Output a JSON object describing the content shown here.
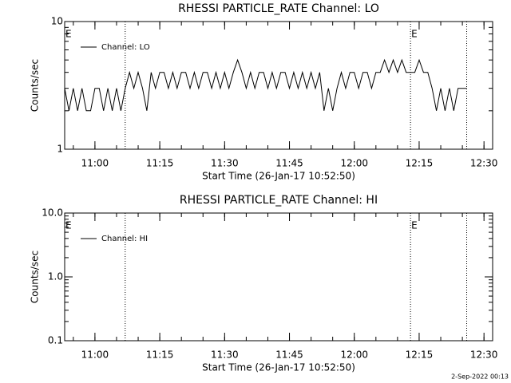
{
  "chart_data": [
    {
      "type": "line",
      "title": "RHESSI PARTICLE_RATE Channel: LO",
      "ylabel": "Counts/sec",
      "xlabel": "Start Time (26-Jan-17 10:52:50)",
      "log_y": true,
      "ylim": [
        1,
        10
      ],
      "yticks": [
        1,
        10
      ],
      "xlim": [
        "10:53",
        "12:32"
      ],
      "xticks": [
        "11:00",
        "11:15",
        "11:30",
        "11:45",
        "12:00",
        "12:15",
        "12:30"
      ],
      "legend": "upper left",
      "vlines": [
        "11:07",
        "12:13",
        "12:26"
      ],
      "annotations": [
        {
          "text": "E",
          "x": "10:53"
        },
        {
          "text": "E",
          "x": "12:13"
        }
      ],
      "x": [
        "10:53",
        "10:54",
        "10:55",
        "10:56",
        "10:57",
        "10:58",
        "10:59",
        "11:00",
        "11:01",
        "11:02",
        "11:03",
        "11:04",
        "11:05",
        "11:06",
        "11:07",
        "11:08",
        "11:09",
        "11:10",
        "11:11",
        "11:12",
        "11:13",
        "11:14",
        "11:15",
        "11:16",
        "11:17",
        "11:18",
        "11:19",
        "11:20",
        "11:21",
        "11:22",
        "11:23",
        "11:24",
        "11:25",
        "11:26",
        "11:27",
        "11:28",
        "11:29",
        "11:30",
        "11:31",
        "11:32",
        "11:33",
        "11:34",
        "11:35",
        "11:36",
        "11:37",
        "11:38",
        "11:39",
        "11:40",
        "11:41",
        "11:42",
        "11:43",
        "11:44",
        "11:45",
        "11:46",
        "11:47",
        "11:48",
        "11:49",
        "11:50",
        "11:51",
        "11:52",
        "11:53",
        "11:54",
        "11:55",
        "11:56",
        "11:57",
        "11:58",
        "11:59",
        "12:00",
        "12:01",
        "12:02",
        "12:03",
        "12:04",
        "12:05",
        "12:06",
        "12:07",
        "12:08",
        "12:09",
        "12:10",
        "12:11",
        "12:12",
        "12:13",
        "12:14",
        "12:15",
        "12:16",
        "12:17",
        "12:18",
        "12:19",
        "12:20",
        "12:21",
        "12:22",
        "12:23",
        "12:24",
        "12:25",
        "12:26"
      ],
      "series": [
        {
          "name": "Channel: LO",
          "color": "#000000",
          "values": [
            3,
            2,
            3,
            2,
            3,
            2,
            2,
            3,
            3,
            2,
            3,
            2,
            3,
            2,
            3,
            4,
            3,
            4,
            3,
            2,
            4,
            3,
            4,
            4,
            3,
            4,
            3,
            4,
            4,
            3,
            4,
            3,
            4,
            4,
            3,
            4,
            3,
            4,
            3,
            4,
            5,
            4,
            3,
            4,
            3,
            4,
            4,
            3,
            4,
            3,
            4,
            4,
            3,
            4,
            3,
            4,
            3,
            4,
            3,
            4,
            2,
            3,
            2,
            3,
            4,
            3,
            4,
            4,
            3,
            4,
            4,
            3,
            4,
            4,
            5,
            4,
            5,
            4,
            5,
            4,
            4,
            4,
            5,
            4,
            4,
            3,
            2,
            3,
            2,
            3,
            2,
            3,
            3,
            3
          ]
        }
      ]
    },
    {
      "type": "line",
      "title": "RHESSI PARTICLE_RATE Channel: HI",
      "ylabel": "Counts/sec",
      "xlabel": "Start Time (26-Jan-17 10:52:50)",
      "log_y": true,
      "ylim": [
        0.1,
        10
      ],
      "yticks": [
        0.1,
        {
          "value": 1,
          "label": "1.0"
        },
        {
          "value": 10,
          "label": "10.0"
        }
      ],
      "xlim": [
        "10:53",
        "12:32"
      ],
      "xticks": [
        "11:00",
        "11:15",
        "11:30",
        "11:45",
        "12:00",
        "12:15",
        "12:30"
      ],
      "legend": "upper left",
      "vlines": [
        "11:07",
        "12:13",
        "12:26"
      ],
      "annotations": [
        {
          "text": "E",
          "x": "10:53"
        },
        {
          "text": "E",
          "x": "12:13"
        }
      ],
      "x": [],
      "series": [
        {
          "name": "Channel: HI",
          "color": "#000000",
          "values": []
        }
      ]
    }
  ],
  "footer": "2-Sep-2022 00:13"
}
